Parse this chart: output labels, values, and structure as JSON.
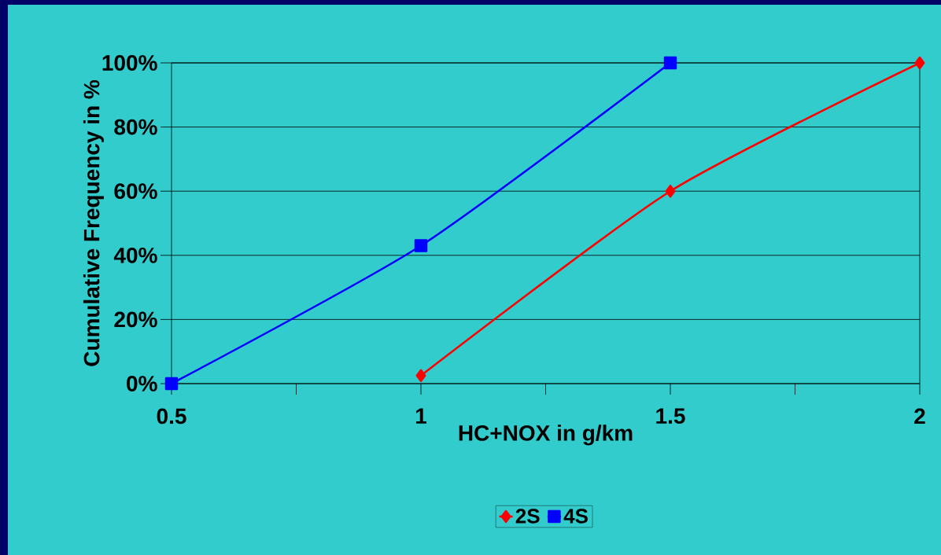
{
  "chart_data": {
    "type": "line",
    "xlabel": "HC+NOX in g/km",
    "ylabel": "Cumulative Frequency in %",
    "series": [
      {
        "name": "2S",
        "color": "#ff0000",
        "marker": "diamond",
        "x": [
          1,
          1.5,
          2
        ],
        "values": [
          2.5,
          60,
          100
        ]
      },
      {
        "name": "4S",
        "color": "#0000ff",
        "marker": "square",
        "x": [
          0.5,
          1,
          1.5
        ],
        "values": [
          0,
          43,
          100
        ]
      }
    ],
    "xlim": [
      0.5,
      2
    ],
    "ylim": [
      0,
      100
    ],
    "xticks": [
      {
        "value": 0.5,
        "label": "0.5"
      },
      {
        "value": 0.75,
        "label": null
      },
      1,
      {
        "value": 1.25,
        "label": null
      },
      {
        "value": 1.5,
        "label": "1.5"
      },
      {
        "value": 1.75,
        "label": null
      },
      2
    ],
    "yticks": [
      {
        "value": 0,
        "label": "0%"
      },
      {
        "value": 20,
        "label": "20%"
      },
      {
        "value": 40,
        "label": "40%"
      },
      {
        "value": 60,
        "label": "60%"
      },
      {
        "value": 80,
        "label": "80%"
      },
      {
        "value": 100,
        "label": "100%"
      }
    ],
    "grid": "y",
    "legend": "bottom"
  }
}
